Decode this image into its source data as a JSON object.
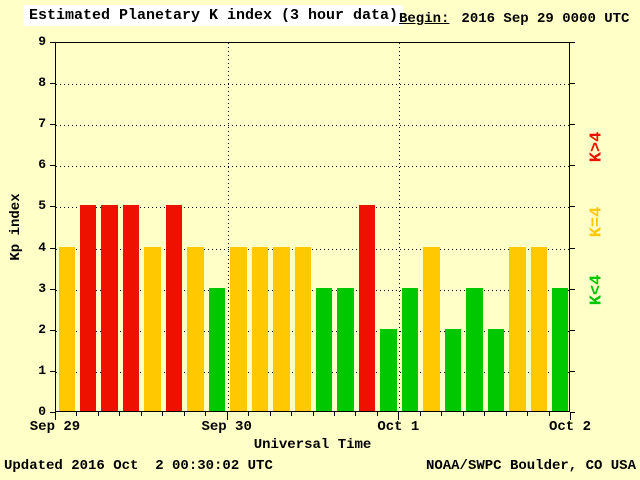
{
  "header": {
    "title": "Estimated Planetary K index (3 hour data)",
    "begin_label": "Begin:",
    "begin_value": "2016 Sep 29 0000 UTC"
  },
  "legend": [
    {
      "label": "K>4",
      "color": "#ee1100"
    },
    {
      "label": "K=4",
      "color": "#ffc800"
    },
    {
      "label": "K<4",
      "color": "#00c800"
    }
  ],
  "footer": {
    "updated": "Updated 2016 Oct  2 00:30:02 UTC",
    "source": "NOAA/SWPC Boulder, CO USA"
  },
  "colors": {
    "background": "#ffffc8",
    "title_background": "#ffffff",
    "bar_low": "#00c800",
    "bar_mid": "#ffc800",
    "bar_high": "#ee1100",
    "axis": "#000000"
  },
  "chart_data": {
    "type": "bar",
    "title": "Estimated Planetary K index (3 hour data)",
    "xlabel": "Universal Time",
    "ylabel": "Kp index",
    "ylim": [
      0,
      9
    ],
    "yticks": [
      0,
      1,
      2,
      3,
      4,
      5,
      6,
      7,
      8,
      9
    ],
    "x_day_labels": [
      "Sep 29",
      "Sep 30",
      "Oct 1",
      "Oct 2"
    ],
    "hours_per_bar": 3,
    "bars_per_day": 8,
    "values": [
      4,
      5,
      5,
      5,
      4,
      5,
      4,
      3,
      4,
      4,
      4,
      4,
      3,
      3,
      5,
      2,
      3,
      4,
      2,
      3,
      2,
      4,
      4,
      3
    ],
    "color_rule": {
      "below_4": "green",
      "equal_4": "yellow",
      "above_4": "red"
    },
    "grid": "dotted horizontal lines at each Kp integer; dotted vertical lines at day boundaries",
    "legend_position": "right side, rotated 90deg"
  }
}
